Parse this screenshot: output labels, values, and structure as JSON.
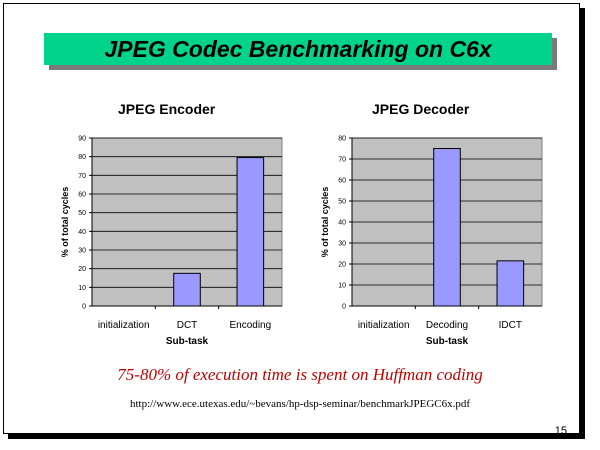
{
  "slide": {
    "title": "JPEG Codec Benchmarking on C6x",
    "footnote": "75-80% of execution time is spent on Huffman coding",
    "url": "http://www.ece.utexas.edu/~bevans/hp-dsp-seminar/benchmarkJPEGC6x.pdf",
    "page_number": "15"
  },
  "chart_data": [
    {
      "type": "bar",
      "title": "JPEG Encoder",
      "xlabel": "Sub-task",
      "ylabel": "% of total cycles",
      "categories": [
        "initialization",
        "DCT",
        "Encoding"
      ],
      "values": [
        0,
        17.5,
        79.5
      ],
      "ylim": [
        0,
        90
      ],
      "yticks": [
        "0",
        "10",
        "20",
        "30",
        "40",
        "50",
        "60",
        "70",
        "80",
        "90"
      ],
      "grid": true,
      "plot_bg": "#c0c0c0",
      "bar_color": "#9999ff"
    },
    {
      "type": "bar",
      "title": "JPEG Decoder",
      "xlabel": "Sub-task",
      "ylabel": "% of total cycles",
      "categories": [
        "initialization",
        "Decoding",
        "IDCT"
      ],
      "values": [
        0,
        75,
        21.5
      ],
      "ylim": [
        0,
        80
      ],
      "yticks": [
        "0",
        "10",
        "20",
        "30",
        "40",
        "50",
        "60",
        "70",
        "80"
      ],
      "grid": true,
      "plot_bg": "#c0c0c0",
      "bar_color": "#9999ff"
    }
  ]
}
